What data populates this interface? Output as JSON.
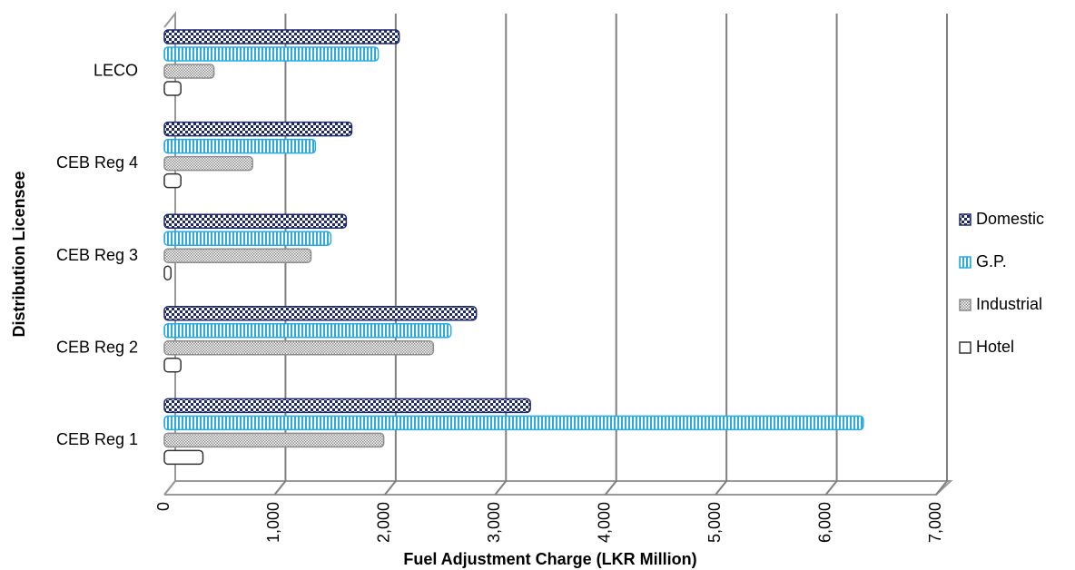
{
  "chart_data": {
    "type": "bar",
    "orientation": "horizontal",
    "x_label": "Fuel Adjustment Charge (LKR Million)",
    "y_label": "Distribution Licensee",
    "categories": [
      "CEB Reg 1",
      "CEB Reg 2",
      "CEB Reg 3",
      "CEB Reg 4",
      "LECO"
    ],
    "series": [
      {
        "name": "Domestic",
        "color": "#1f2a6b",
        "values": [
          3320,
          2830,
          1650,
          1700,
          2130
        ]
      },
      {
        "name": "G.P.",
        "color": "#29abe2",
        "values": [
          6340,
          2600,
          1510,
          1370,
          1940
        ]
      },
      {
        "name": "Industrial",
        "color": "#8c8c8c",
        "values": [
          1990,
          2440,
          1330,
          800,
          450
        ]
      },
      {
        "name": "Hotel",
        "color": "#333333",
        "values": [
          350,
          150,
          60,
          150,
          150
        ]
      }
    ],
    "xlim": [
      0,
      7000
    ],
    "xticks": [
      0,
      {
        "value": 1000,
        "label": "1,000"
      },
      {
        "value": 2000,
        "label": "2,000"
      },
      {
        "value": 3000,
        "label": "3,000"
      },
      {
        "value": 4000,
        "label": "4,000"
      },
      {
        "value": 5000,
        "label": "5,000"
      },
      {
        "value": 6000,
        "label": "6,000"
      },
      {
        "value": 7000,
        "label": "7,000"
      }
    ],
    "grid": true,
    "legend": "right"
  }
}
